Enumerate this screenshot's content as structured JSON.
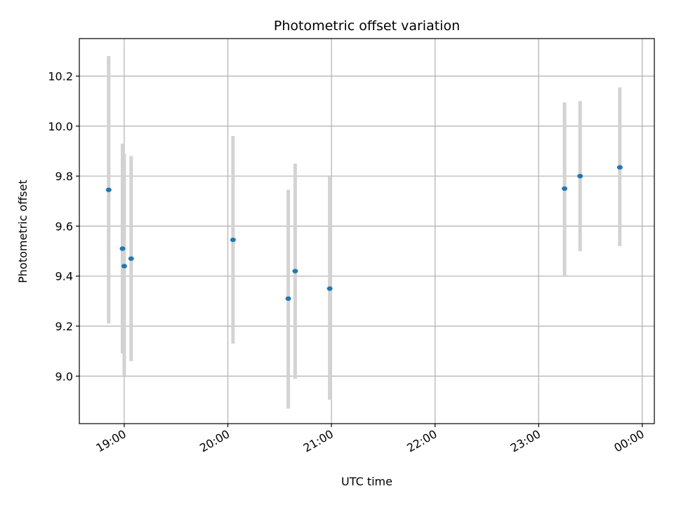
{
  "chart_data": {
    "type": "scatter",
    "title": "Photometric offset variation",
    "xlabel": "UTC time",
    "ylabel": "Photometric offset",
    "grid": true,
    "xlim": [
      "18:34",
      "00:07"
    ],
    "ylim": [
      8.81,
      10.35
    ],
    "x_ticks": [
      "19:00",
      "20:00",
      "21:00",
      "22:00",
      "23:00",
      "00:00"
    ],
    "y_ticks": [
      "9.0",
      "9.2",
      "9.4",
      "9.6",
      "9.8",
      "10.0",
      "10.2"
    ],
    "marker_color": "#1f77b4",
    "errorbar_color": "#d3d3d3",
    "points": [
      {
        "time": "18:51",
        "y": 9.745,
        "ylow": 9.21,
        "yhigh": 10.28
      },
      {
        "time": "18:59",
        "y": 9.51,
        "ylow": 9.09,
        "yhigh": 9.93
      },
      {
        "time": "19:00",
        "y": 9.44,
        "ylow": 9.0,
        "yhigh": 9.89
      },
      {
        "time": "19:04",
        "y": 9.47,
        "ylow": 9.06,
        "yhigh": 9.88
      },
      {
        "time": "20:03",
        "y": 9.545,
        "ylow": 9.13,
        "yhigh": 9.96
      },
      {
        "time": "20:35",
        "y": 9.31,
        "ylow": 8.87,
        "yhigh": 9.745
      },
      {
        "time": "20:39",
        "y": 9.42,
        "ylow": 8.99,
        "yhigh": 9.85
      },
      {
        "time": "20:59",
        "y": 9.35,
        "ylow": 8.905,
        "yhigh": 9.8
      },
      {
        "time": "23:15",
        "y": 9.75,
        "ylow": 9.4,
        "yhigh": 10.095
      },
      {
        "time": "23:24",
        "y": 9.8,
        "ylow": 9.5,
        "yhigh": 10.1
      },
      {
        "time": "23:47",
        "y": 9.835,
        "ylow": 9.52,
        "yhigh": 10.155
      }
    ]
  }
}
